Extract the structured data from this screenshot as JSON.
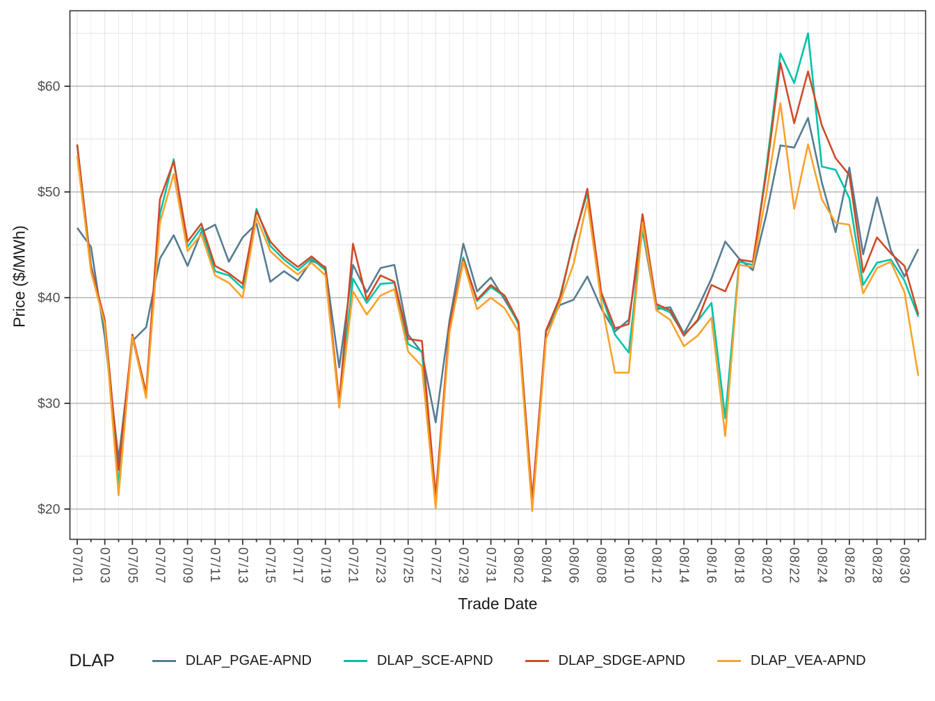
{
  "chart_data": {
    "type": "line",
    "title": "",
    "xlabel": "Trade Date",
    "ylabel": "Price ($/MWh)",
    "ylim": [
      17.2,
      67.2
    ],
    "grid": "major_and_minor",
    "legend_position": "bottom",
    "x": [
      "07/01",
      "07/02",
      "07/03",
      "07/04",
      "07/05",
      "07/06",
      "07/07",
      "07/08",
      "07/09",
      "07/10",
      "07/11",
      "07/12",
      "07/13",
      "07/14",
      "07/15",
      "07/16",
      "07/17",
      "07/18",
      "07/19",
      "07/20",
      "07/21",
      "07/22",
      "07/23",
      "07/24",
      "07/25",
      "07/26",
      "07/27",
      "07/28",
      "07/29",
      "07/30",
      "07/31",
      "08/01",
      "08/02",
      "08/03",
      "08/04",
      "08/05",
      "08/06",
      "08/07",
      "08/08",
      "08/09",
      "08/10",
      "08/11",
      "08/12",
      "08/13",
      "08/14",
      "08/15",
      "08/16",
      "08/17",
      "08/18",
      "08/19",
      "08/20",
      "08/21",
      "08/22",
      "08/23",
      "08/24",
      "08/25",
      "08/26",
      "08/27",
      "08/28",
      "08/29",
      "08/30",
      "08/31"
    ],
    "x_tick_labels": [
      "07/01",
      "07/03",
      "07/05",
      "07/07",
      "07/09",
      "07/11",
      "07/13",
      "07/15",
      "07/17",
      "07/19",
      "07/21",
      "07/23",
      "07/25",
      "07/27",
      "07/29",
      "07/31",
      "08/02",
      "08/04",
      "08/06",
      "08/08",
      "08/10",
      "08/12",
      "08/14",
      "08/16",
      "08/18",
      "08/20",
      "08/22",
      "08/24",
      "08/26",
      "08/28",
      "08/30"
    ],
    "y_ticks_major": [
      20,
      30,
      40,
      50,
      60
    ],
    "y_ticks_minor": [
      25,
      35,
      45,
      55,
      65
    ],
    "y_tick_labels": [
      "$20",
      "$30",
      "$40",
      "$50",
      "$60"
    ],
    "series": [
      {
        "name": "DLAP_PGAE-APND",
        "color": "#567c90",
        "values": [
          46.6,
          44.8,
          36.3,
          24.7,
          35.9,
          37.2,
          43.7,
          45.9,
          43.0,
          46.2,
          46.9,
          43.4,
          45.7,
          47.0,
          41.5,
          42.5,
          41.6,
          43.5,
          42.9,
          33.4,
          43.1,
          40.5,
          42.8,
          43.1,
          36.5,
          34.8,
          28.2,
          37.8,
          45.1,
          40.6,
          41.9,
          39.8,
          37.6,
          20.8,
          36.8,
          39.3,
          39.8,
          42.0,
          39.0,
          36.8,
          37.9,
          46.4,
          38.9,
          39.1,
          36.6,
          39.0,
          41.8,
          45.3,
          43.7,
          42.6,
          48.0,
          54.4,
          54.2,
          57.0,
          50.9,
          46.2,
          52.3,
          44.1,
          49.5,
          44.5,
          42.0,
          44.6
        ]
      },
      {
        "name": "DLAP_SCE-APND",
        "color": "#00c3a6",
        "values": [
          54.4,
          43.1,
          37.3,
          22.3,
          36.2,
          30.7,
          47.9,
          53.1,
          44.8,
          46.6,
          42.5,
          42.1,
          40.9,
          48.4,
          44.9,
          43.6,
          42.6,
          43.7,
          42.6,
          30.0,
          41.8,
          39.5,
          41.3,
          41.4,
          35.6,
          34.9,
          20.6,
          37.1,
          43.8,
          39.7,
          41.0,
          40.1,
          37.5,
          20.3,
          36.9,
          39.7,
          45.5,
          49.9,
          40.3,
          36.5,
          34.8,
          46.6,
          39.2,
          38.6,
          36.5,
          37.8,
          39.5,
          28.6,
          43.4,
          43.1,
          52.5,
          63.1,
          60.3,
          65.0,
          52.4,
          52.1,
          49.4,
          41.2,
          43.3,
          43.6,
          41.6,
          38.2
        ]
      },
      {
        "name": "DLAP_SDGE-APND",
        "color": "#d04a28",
        "values": [
          54.5,
          42.9,
          37.9,
          23.7,
          36.5,
          31.0,
          49.3,
          52.9,
          45.3,
          47.0,
          43.0,
          42.3,
          41.3,
          48.2,
          45.3,
          43.9,
          42.9,
          43.9,
          42.8,
          30.1,
          45.1,
          39.8,
          42.1,
          41.5,
          36.1,
          35.9,
          21.2,
          37.4,
          43.6,
          39.8,
          41.2,
          40.2,
          37.7,
          20.9,
          36.9,
          40.0,
          45.3,
          50.3,
          40.5,
          37.1,
          37.5,
          47.9,
          39.4,
          38.8,
          36.4,
          37.9,
          41.2,
          40.6,
          43.6,
          43.4,
          52.0,
          62.2,
          56.5,
          61.4,
          56.3,
          53.2,
          51.6,
          42.4,
          45.7,
          44.2,
          43.0,
          38.4
        ]
      },
      {
        "name": "DLAP_VEA-APND",
        "color": "#f9a22b",
        "values": [
          53.4,
          42.5,
          37.5,
          21.3,
          36.3,
          30.5,
          47.1,
          51.7,
          44.4,
          46.0,
          42.1,
          41.4,
          40.0,
          47.6,
          44.4,
          43.2,
          42.2,
          43.3,
          42.1,
          29.6,
          40.6,
          38.4,
          40.2,
          40.8,
          34.9,
          33.5,
          20.1,
          36.7,
          43.4,
          38.9,
          40.0,
          39.0,
          36.8,
          19.8,
          36.1,
          39.5,
          43.2,
          49.1,
          39.7,
          32.9,
          32.9,
          47.1,
          38.8,
          37.9,
          35.4,
          36.4,
          38.1,
          26.9,
          43.1,
          42.9,
          50.0,
          58.4,
          48.4,
          54.5,
          49.3,
          47.1,
          46.9,
          40.4,
          42.8,
          43.4,
          40.5,
          32.6
        ]
      }
    ]
  },
  "axes": {
    "x_title": "Trade Date",
    "y_title": "Price ($/MWh)"
  },
  "legend": {
    "title": "DLAP"
  },
  "style_colors": {
    "panel_border": "#333333",
    "grid_major_h": "#969696",
    "grid_minor_h": "#e3e3e3",
    "grid_major_v": "#e3e3e3",
    "grid_minor_v": "#eeeeee",
    "tick_mark": "#333333",
    "tick_text": "#4d4d4d"
  }
}
